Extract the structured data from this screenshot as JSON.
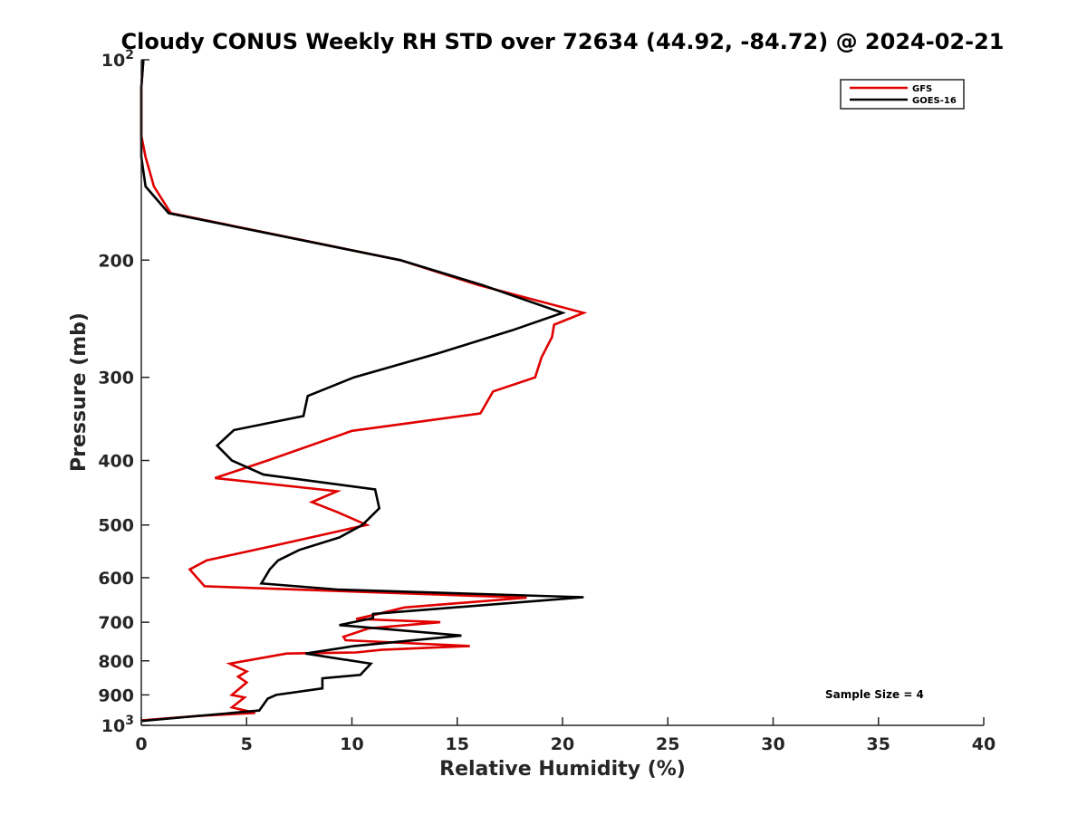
{
  "chart_data": {
    "type": "line",
    "title": "Cloudy CONUS Weekly RH STD over 72634 (44.92, -84.72) @ 2024-02-21",
    "xlabel": "Relative Humidity (%)",
    "ylabel": "Pressure (mb)",
    "xlim": [
      0,
      40
    ],
    "ylim": [
      100,
      1000
    ],
    "y_scale": "log",
    "y_reversed": true,
    "grid": false,
    "legend_position": "top-right",
    "annotation": "Sample Size = 4",
    "x_ticks": [
      "0",
      "5",
      "10",
      "15",
      "20",
      "25",
      "30",
      "35",
      "40"
    ],
    "x_tick_values": [
      0,
      5,
      10,
      15,
      20,
      25,
      30,
      35,
      40
    ],
    "y_ticks": [
      {
        "value": 100,
        "base": "10",
        "exp": "2"
      },
      {
        "value": 200,
        "base": "200",
        "exp": ""
      },
      {
        "value": 300,
        "base": "300",
        "exp": ""
      },
      {
        "value": 400,
        "base": "400",
        "exp": ""
      },
      {
        "value": 500,
        "base": "500",
        "exp": ""
      },
      {
        "value": 600,
        "base": "600",
        "exp": ""
      },
      {
        "value": 700,
        "base": "700",
        "exp": ""
      },
      {
        "value": 800,
        "base": "800",
        "exp": ""
      },
      {
        "value": 900,
        "base": "900",
        "exp": ""
      },
      {
        "value": 1000,
        "base": "10",
        "exp": "3"
      }
    ],
    "series": [
      {
        "name": "GFS",
        "color": "#e00000",
        "points": [
          [
            0.1,
            100
          ],
          [
            0.0,
            110
          ],
          [
            0.0,
            120
          ],
          [
            0.0,
            130
          ],
          [
            0.2,
            140
          ],
          [
            0.6,
            155
          ],
          [
            1.4,
            170
          ],
          [
            12.3,
            200
          ],
          [
            16.0,
            218
          ],
          [
            21.0,
            240
          ],
          [
            19.6,
            250
          ],
          [
            19.5,
            261
          ],
          [
            19.0,
            280
          ],
          [
            18.7,
            300
          ],
          [
            16.7,
            315
          ],
          [
            16.1,
            340
          ],
          [
            10.0,
            361
          ],
          [
            6.0,
            400
          ],
          [
            3.5,
            425
          ],
          [
            9.3,
            445
          ],
          [
            8.1,
            462
          ],
          [
            9.3,
            478
          ],
          [
            10.7,
            500
          ],
          [
            6.2,
            538
          ],
          [
            3.1,
            565
          ],
          [
            2.3,
            583
          ],
          [
            3.0,
            618
          ],
          [
            18.3,
            643
          ],
          [
            12.5,
            665
          ],
          [
            11.0,
            683
          ],
          [
            10.2,
            692
          ],
          [
            14.2,
            700
          ],
          [
            10.8,
            715
          ],
          [
            9.6,
            736
          ],
          [
            9.7,
            745
          ],
          [
            15.6,
            760
          ],
          [
            11.4,
            770
          ],
          [
            10.2,
            777
          ],
          [
            6.9,
            780
          ],
          [
            4.2,
            808
          ],
          [
            5.0,
            830
          ],
          [
            4.6,
            845
          ],
          [
            5.0,
            862
          ],
          [
            4.6,
            884
          ],
          [
            4.3,
            900
          ],
          [
            4.9,
            908
          ],
          [
            4.3,
            940
          ],
          [
            5.4,
            958
          ],
          [
            2.7,
            968
          ],
          [
            0.0,
            983
          ]
        ]
      },
      {
        "name": "GOES-16",
        "color": "#000000",
        "points": [
          [
            0.1,
            100
          ],
          [
            0.0,
            110
          ],
          [
            0.0,
            120
          ],
          [
            0.0,
            130
          ],
          [
            0.0,
            140
          ],
          [
            0.2,
            155
          ],
          [
            1.3,
            170
          ],
          [
            12.3,
            200
          ],
          [
            16.2,
            218
          ],
          [
            20.0,
            240
          ],
          [
            17.6,
            255
          ],
          [
            14.1,
            276
          ],
          [
            10.1,
            300
          ],
          [
            7.9,
            320
          ],
          [
            7.7,
            343
          ],
          [
            4.4,
            360
          ],
          [
            3.6,
            380
          ],
          [
            4.3,
            400
          ],
          [
            5.8,
            420
          ],
          [
            11.1,
            442
          ],
          [
            11.3,
            472
          ],
          [
            10.5,
            500
          ],
          [
            9.4,
            522
          ],
          [
            7.5,
            545
          ],
          [
            6.5,
            565
          ],
          [
            6.1,
            583
          ],
          [
            5.7,
            612
          ],
          [
            9.3,
            625
          ],
          [
            21.0,
            642
          ],
          [
            11.0,
            680
          ],
          [
            11.0,
            690
          ],
          [
            9.4,
            707
          ],
          [
            15.2,
            733
          ],
          [
            10.1,
            760
          ],
          [
            7.8,
            780
          ],
          [
            10.9,
            808
          ],
          [
            10.4,
            840
          ],
          [
            8.6,
            850
          ],
          [
            8.6,
            880
          ],
          [
            6.4,
            900
          ],
          [
            6.0,
            912
          ],
          [
            5.6,
            950
          ],
          [
            0.0,
            985
          ]
        ]
      }
    ]
  }
}
